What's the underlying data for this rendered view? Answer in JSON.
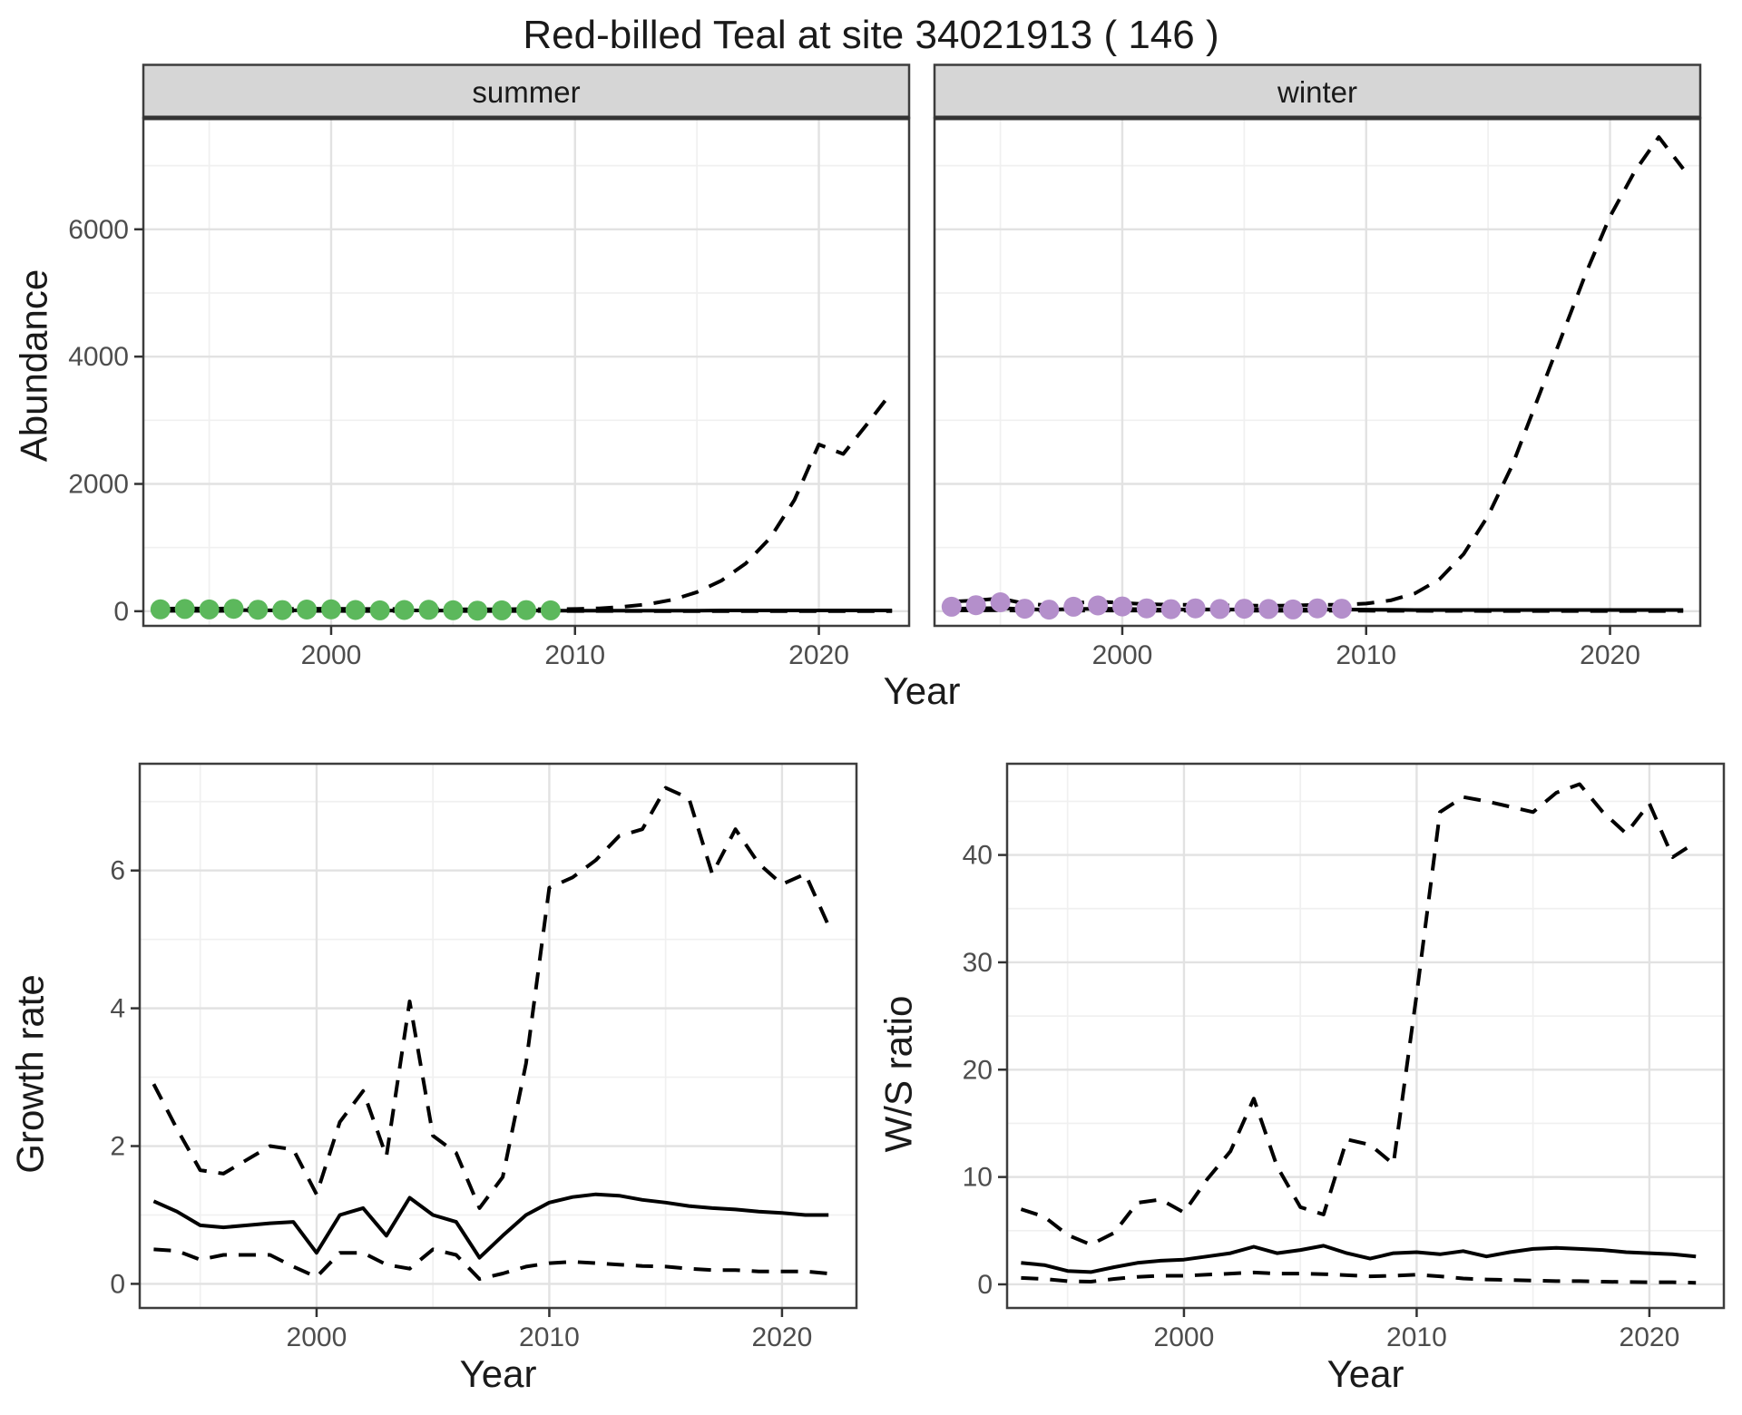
{
  "title": "Red-billed Teal at site 34021913 ( 146 )",
  "axes": {
    "abundance_label": "Abundance",
    "growth_label": "Growth rate",
    "ws_label": "W/S ratio",
    "top_x_label": "Year",
    "bottom_left_x_label": "Year",
    "bottom_right_x_label": "Year"
  },
  "style": {
    "summer_point_color": "#5CB85C",
    "winter_point_color": "#B48FCB",
    "line_color": "#000000",
    "strip_background": "#D6D6D6",
    "grid_major": "#E2E2E2",
    "grid_minor": "#F0F0F0",
    "panel_border": "#3D3D3D"
  },
  "chart_data": [
    {
      "id": "abundance_summer",
      "type": "line",
      "facet_label": "summer",
      "ylabel": "Abundance",
      "xlabel": "Year",
      "xlim": [
        1992.3,
        2023.7
      ],
      "ylim": [
        -230,
        7750
      ],
      "xticks": [
        2000,
        2010,
        2020
      ],
      "yticks": [
        0,
        2000,
        4000,
        6000
      ],
      "x_minor": [
        1995,
        2005,
        2015
      ],
      "y_minor": [
        1000,
        3000,
        5000,
        7000
      ],
      "x_years": [
        1993,
        1994,
        1995,
        1996,
        1997,
        1998,
        1999,
        2000,
        2001,
        2002,
        2003,
        2004,
        2005,
        2006,
        2007,
        2008,
        2009,
        2010,
        2011,
        2012,
        2013,
        2014,
        2015,
        2016,
        2017,
        2018,
        2019,
        2020,
        2021,
        2022,
        2023
      ],
      "series": [
        {
          "key": "upper_ci",
          "name": "upper credible interval",
          "style": "dashed",
          "values": [
            40,
            45,
            40,
            45,
            40,
            35,
            40,
            40,
            35,
            35,
            35,
            35,
            30,
            30,
            30,
            35,
            30,
            35,
            45,
            70,
            110,
            180,
            300,
            480,
            750,
            1150,
            1750,
            2620,
            2470,
            2950,
            3450
          ]
        },
        {
          "key": "median",
          "name": "median fit",
          "style": "solid",
          "values": [
            15,
            18,
            15,
            18,
            15,
            12,
            15,
            15,
            12,
            10,
            12,
            12,
            10,
            8,
            10,
            12,
            10,
            10,
            10,
            10,
            10,
            10,
            10,
            12,
            12,
            12,
            12,
            12,
            12,
            12,
            12
          ]
        },
        {
          "key": "lower_ci",
          "name": "lower credible interval",
          "style": "dashed",
          "values": [
            5,
            6,
            5,
            6,
            5,
            4,
            5,
            5,
            4,
            3,
            4,
            4,
            3,
            3,
            3,
            4,
            3,
            3,
            3,
            3,
            2,
            2,
            2,
            2,
            2,
            2,
            2,
            2,
            2,
            2,
            2
          ]
        }
      ],
      "points": {
        "name": "observed summer counts",
        "color": "#5CB85C",
        "years": [
          1993,
          1994,
          1995,
          1996,
          1997,
          1998,
          1999,
          2000,
          2001,
          2002,
          2003,
          2004,
          2005,
          2006,
          2007,
          2008,
          2009
        ],
        "values": [
          30,
          35,
          28,
          38,
          24,
          18,
          26,
          30,
          20,
          14,
          20,
          22,
          15,
          10,
          14,
          18,
          14
        ]
      }
    },
    {
      "id": "abundance_winter",
      "type": "line",
      "facet_label": "winter",
      "ylabel": "Abundance",
      "xlabel": "Year",
      "xlim": [
        1992.3,
        2023.7
      ],
      "ylim": [
        -230,
        7750
      ],
      "xticks": [
        2000,
        2010,
        2020
      ],
      "yticks": [
        0,
        2000,
        4000,
        6000
      ],
      "x_minor": [
        1995,
        2005,
        2015
      ],
      "y_minor": [
        1000,
        3000,
        5000,
        7000
      ],
      "x_years": [
        1993,
        1994,
        1995,
        1996,
        1997,
        1998,
        1999,
        2000,
        2001,
        2002,
        2003,
        2004,
        2005,
        2006,
        2007,
        2008,
        2009,
        2010,
        2011,
        2012,
        2013,
        2014,
        2015,
        2016,
        2017,
        2018,
        2019,
        2020,
        2021,
        2022,
        2023
      ],
      "series": [
        {
          "key": "upper_ci",
          "name": "upper credible interval",
          "style": "dashed",
          "values": [
            150,
            170,
            200,
            120,
            90,
            130,
            150,
            130,
            110,
            100,
            100,
            90,
            90,
            85,
            90,
            100,
            100,
            120,
            170,
            280,
            500,
            900,
            1500,
            2300,
            3300,
            4300,
            5300,
            6200,
            6900,
            7450,
            6950
          ]
        },
        {
          "key": "median",
          "name": "median fit",
          "style": "solid",
          "values": [
            40,
            45,
            50,
            32,
            25,
            35,
            40,
            36,
            30,
            25,
            30,
            26,
            28,
            25,
            22,
            30,
            28,
            25,
            22,
            20,
            20,
            20,
            20,
            20,
            20,
            20,
            20,
            20,
            20,
            20,
            20
          ]
        },
        {
          "key": "lower_ci",
          "name": "lower credible interval",
          "style": "dashed",
          "values": [
            12,
            14,
            15,
            10,
            8,
            10,
            12,
            11,
            9,
            8,
            9,
            8,
            8,
            8,
            7,
            9,
            8,
            8,
            7,
            6,
            5,
            5,
            4,
            4,
            4,
            4,
            4,
            4,
            4,
            4,
            4
          ]
        }
      ],
      "points": {
        "name": "observed winter counts",
        "color": "#B48FCB",
        "years": [
          1993,
          1994,
          1995,
          1996,
          1997,
          1998,
          1999,
          2000,
          2001,
          2002,
          2003,
          2004,
          2005,
          2006,
          2007,
          2008,
          2009
        ],
        "values": [
          70,
          95,
          140,
          40,
          25,
          70,
          90,
          75,
          45,
          32,
          45,
          35,
          40,
          35,
          28,
          45,
          40
        ]
      }
    },
    {
      "id": "growth",
      "type": "line",
      "ylabel": "Growth rate",
      "xlabel": "Year",
      "xlim": [
        1992.4,
        2023.2
      ],
      "ylim": [
        -0.35,
        7.55
      ],
      "xticks": [
        2000,
        2010,
        2020
      ],
      "yticks": [
        0,
        2,
        4,
        6
      ],
      "x_minor": [
        1995,
        2005,
        2015
      ],
      "y_minor": [
        1,
        3,
        5,
        7
      ],
      "x_years": [
        1993,
        1994,
        1995,
        1996,
        1997,
        1998,
        1999,
        2000,
        2001,
        2002,
        2003,
        2004,
        2005,
        2006,
        2007,
        2008,
        2009,
        2010,
        2011,
        2012,
        2013,
        2014,
        2015,
        2016,
        2017,
        2018,
        2019,
        2020,
        2021,
        2022
      ],
      "series": [
        {
          "key": "upper_ci",
          "name": "upper credible interval",
          "style": "dashed",
          "values": [
            2.9,
            2.25,
            1.65,
            1.6,
            1.8,
            2.0,
            1.95,
            1.3,
            2.35,
            2.8,
            1.85,
            4.1,
            2.15,
            1.9,
            1.1,
            1.55,
            3.2,
            5.75,
            5.9,
            6.15,
            6.5,
            6.6,
            7.2,
            7.05,
            5.95,
            6.6,
            6.1,
            5.8,
            5.95,
            5.2
          ]
        },
        {
          "key": "median",
          "name": "median growth rate",
          "style": "solid",
          "values": [
            1.2,
            1.05,
            0.85,
            0.82,
            0.85,
            0.88,
            0.9,
            0.45,
            1.0,
            1.1,
            0.7,
            1.25,
            1.0,
            0.9,
            0.38,
            0.7,
            1.0,
            1.18,
            1.26,
            1.3,
            1.28,
            1.22,
            1.18,
            1.13,
            1.1,
            1.08,
            1.05,
            1.03,
            1.0,
            1.0
          ]
        },
        {
          "key": "lower_ci",
          "name": "lower credible interval",
          "style": "dashed",
          "values": [
            0.5,
            0.48,
            0.35,
            0.42,
            0.42,
            0.42,
            0.25,
            0.1,
            0.45,
            0.45,
            0.28,
            0.22,
            0.5,
            0.42,
            0.07,
            0.15,
            0.25,
            0.3,
            0.32,
            0.3,
            0.28,
            0.26,
            0.25,
            0.22,
            0.2,
            0.2,
            0.18,
            0.18,
            0.18,
            0.15
          ]
        }
      ]
    },
    {
      "id": "ws",
      "type": "line",
      "ylabel": "W/S ratio",
      "xlabel": "Year",
      "xlim": [
        1992.4,
        2023.2
      ],
      "ylim": [
        -2.2,
        48.5
      ],
      "xticks": [
        2000,
        2010,
        2020
      ],
      "yticks": [
        0,
        10,
        20,
        30,
        40
      ],
      "x_minor": [
        1995,
        2005,
        2015
      ],
      "y_minor": [
        5,
        15,
        25,
        35,
        45
      ],
      "x_years": [
        1993,
        1994,
        1995,
        1996,
        1997,
        1998,
        1999,
        2000,
        2001,
        2002,
        2003,
        2004,
        2005,
        2006,
        2007,
        2008,
        2009,
        2010,
        2011,
        2012,
        2013,
        2014,
        2015,
        2016,
        2017,
        2018,
        2019,
        2020,
        2021,
        2022
      ],
      "series": [
        {
          "key": "upper_ci",
          "name": "upper credible interval",
          "style": "dashed",
          "values": [
            7.0,
            6.3,
            4.6,
            3.7,
            4.8,
            7.6,
            7.9,
            6.7,
            9.8,
            12.4,
            17.3,
            11.0,
            7.2,
            6.5,
            13.5,
            13.0,
            11.2,
            27.0,
            44.0,
            45.4,
            45.0,
            44.5,
            44.0,
            45.8,
            46.6,
            44.0,
            42.0,
            44.8,
            39.8,
            41.2
          ]
        },
        {
          "key": "median",
          "name": "median W/S ratio",
          "style": "solid",
          "values": [
            2.0,
            1.8,
            1.25,
            1.15,
            1.6,
            2.0,
            2.2,
            2.3,
            2.6,
            2.9,
            3.5,
            2.9,
            3.2,
            3.6,
            2.9,
            2.4,
            2.9,
            3.0,
            2.8,
            3.1,
            2.6,
            3.0,
            3.3,
            3.4,
            3.3,
            3.2,
            3.0,
            2.9,
            2.8,
            2.6
          ]
        },
        {
          "key": "lower_ci",
          "name": "lower credible interval",
          "style": "dashed",
          "values": [
            0.6,
            0.5,
            0.3,
            0.25,
            0.5,
            0.7,
            0.8,
            0.8,
            0.9,
            1.0,
            1.1,
            1.0,
            1.0,
            0.95,
            0.85,
            0.75,
            0.8,
            0.9,
            0.75,
            0.55,
            0.45,
            0.4,
            0.35,
            0.3,
            0.3,
            0.25,
            0.22,
            0.2,
            0.2,
            0.15
          ]
        }
      ]
    }
  ]
}
